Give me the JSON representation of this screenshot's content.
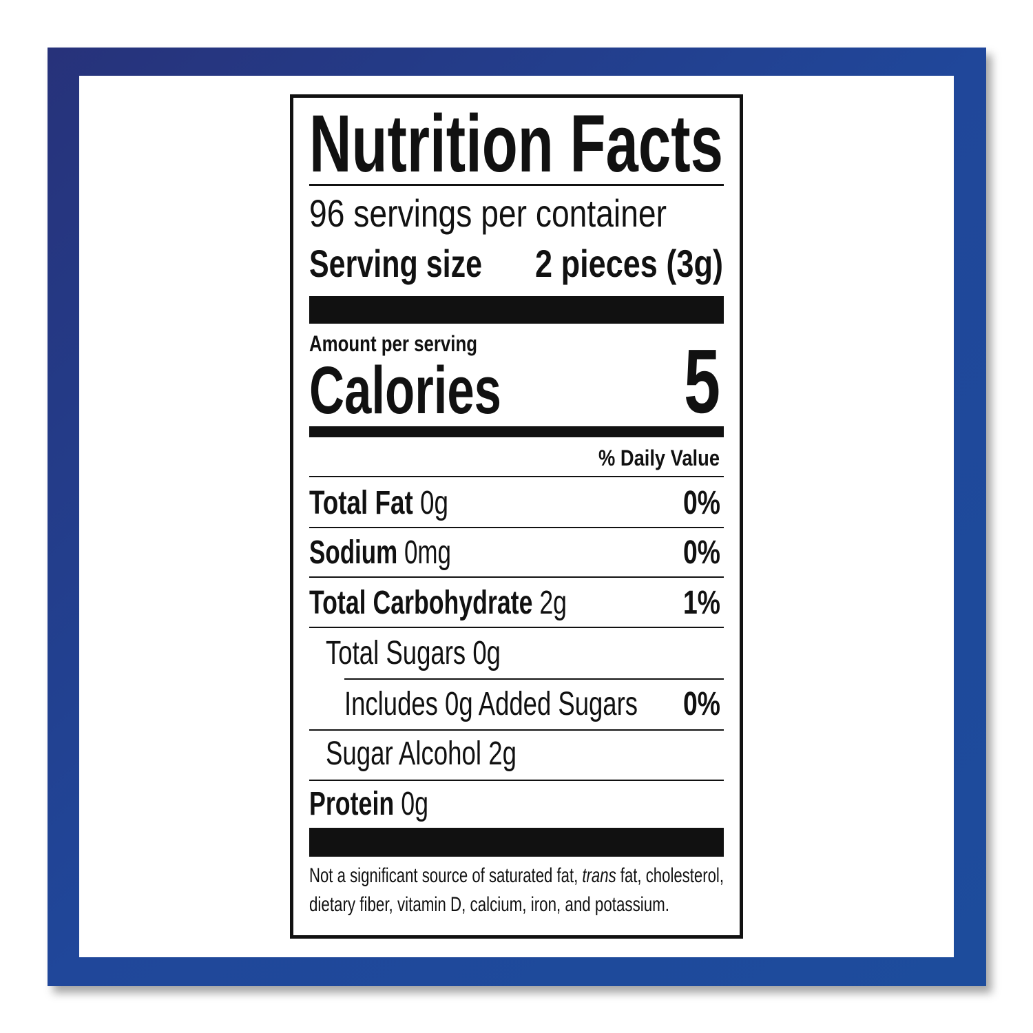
{
  "colors": {
    "frame_dark": "#27327a",
    "frame_light": "#1d4c9c",
    "ink": "#111111"
  },
  "label": {
    "title": "Nutrition Facts",
    "servings_per_container": "96 servings per container",
    "serving_size_label": "Serving size",
    "serving_size_value": "2 pieces (3g)",
    "amount_per_serving": "Amount per serving",
    "calories_label": "Calories",
    "calories_value": "5",
    "daily_value_header": "% Daily Value",
    "nutrients": [
      {
        "name": "Total Fat",
        "amount": "0g",
        "dv": "0%"
      },
      {
        "name": "Sodium",
        "amount": "0mg",
        "dv": "0%"
      },
      {
        "name": "Total Carbohydrate",
        "amount": "2g",
        "dv": "1%"
      },
      {
        "name": "",
        "amount": "Total Sugars 0g",
        "dv": ""
      },
      {
        "name": "",
        "amount": "Includes 0g Added Sugars",
        "dv": "0%"
      },
      {
        "name": "",
        "amount": "Sugar Alcohol 2g",
        "dv": ""
      },
      {
        "name": "Protein",
        "amount": "0g",
        "dv": ""
      }
    ],
    "footnote": {
      "line1_a": "Not a significant source of saturated fat, ",
      "line1_italic": "trans",
      "line1_b": " fat, cholesterol,",
      "line2": "dietary fiber, vitamin D, calcium, iron, and potassium."
    }
  }
}
